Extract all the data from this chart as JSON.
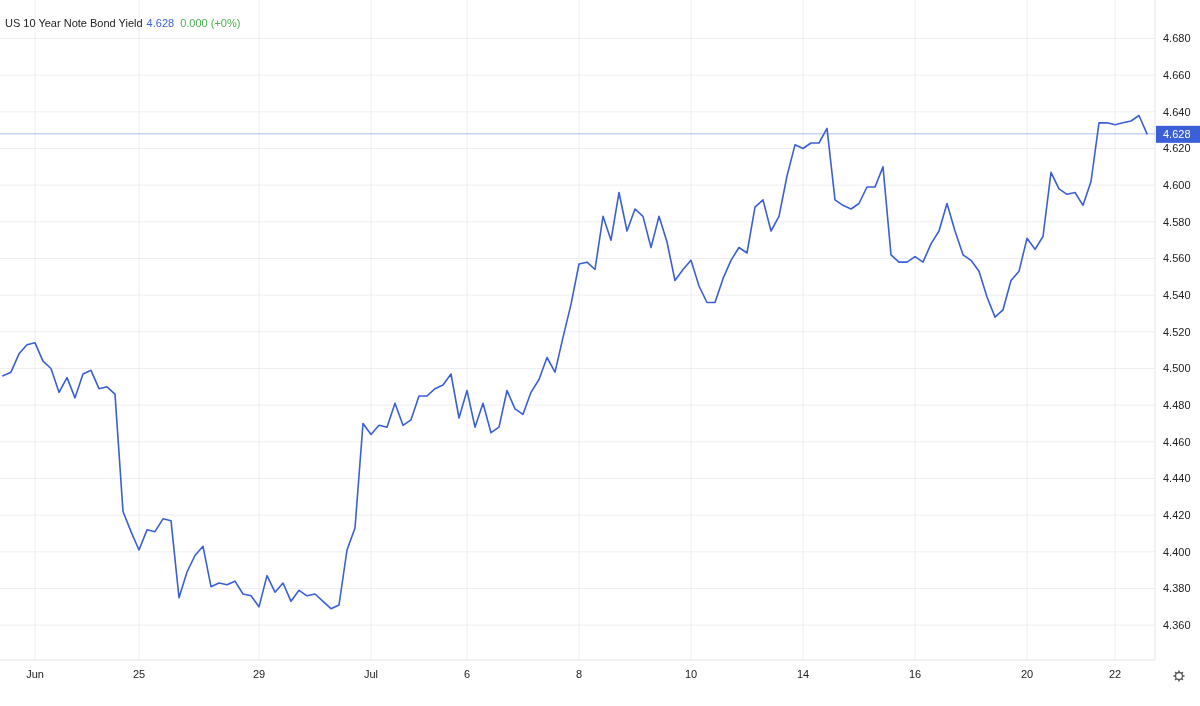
{
  "chart_data": {
    "type": "line",
    "title": "US 10 Year Note Bond Yield",
    "annotations": [
      "4.628",
      "0.000 (+0%)"
    ],
    "categories": [
      null,
      null,
      null,
      null,
      "Jun",
      null,
      null,
      null,
      null,
      null,
      null,
      null,
      null,
      null,
      null,
      null,
      null,
      "25",
      null,
      null,
      null,
      null,
      null,
      null,
      null,
      null,
      null,
      null,
      null,
      null,
      null,
      null,
      "29",
      null,
      null,
      null,
      null,
      null,
      null,
      null,
      null,
      null,
      null,
      null,
      null,
      null,
      "Jul",
      null,
      null,
      null,
      null,
      null,
      null,
      null,
      null,
      null,
      null,
      null,
      "6",
      null,
      null,
      null,
      null,
      null,
      null,
      null,
      null,
      null,
      null,
      null,
      null,
      null,
      "8",
      null,
      null,
      null,
      null,
      null,
      null,
      null,
      null,
      null,
      null,
      null,
      null,
      null,
      "10",
      null,
      null,
      null,
      null,
      null,
      null,
      null,
      null,
      null,
      null,
      null,
      null,
      null,
      "14",
      null,
      null,
      null,
      null,
      null,
      null,
      null,
      null,
      null,
      null,
      null,
      null,
      null,
      "16",
      null,
      null,
      null,
      null,
      null,
      null,
      null,
      null,
      null,
      null,
      null,
      null,
      null,
      "20",
      null,
      null,
      null,
      null,
      null,
      null,
      null,
      null,
      null,
      null,
      "22",
      null,
      null,
      null,
      null
    ],
    "series": [
      {
        "color": "#3a5fd6",
        "values": [
          4.496,
          4.498,
          4.508,
          4.513,
          4.514,
          4.504,
          4.5,
          4.487,
          4.495,
          4.484,
          4.497,
          4.499,
          4.489,
          4.49,
          4.486,
          4.422,
          4.411,
          4.401,
          4.412,
          4.411,
          4.418,
          4.417,
          4.375,
          4.389,
          4.398,
          4.403,
          4.381,
          4.383,
          4.382,
          4.384,
          4.377,
          4.376,
          4.37,
          4.387,
          4.378,
          4.383,
          4.373,
          4.379,
          4.376,
          4.377,
          4.373,
          4.369,
          4.371,
          4.401,
          4.413,
          4.47,
          4.464,
          4.469,
          4.468,
          4.481,
          4.469,
          4.472,
          4.485,
          4.485,
          4.489,
          4.491,
          4.497,
          4.473,
          4.488,
          4.468,
          4.481,
          4.465,
          4.468,
          4.488,
          4.478,
          4.475,
          4.487,
          4.494,
          4.506,
          4.498,
          4.517,
          4.535,
          4.557,
          4.558,
          4.554,
          4.583,
          4.57,
          4.596,
          4.575,
          4.587,
          4.583,
          4.566,
          4.583,
          4.569,
          4.548,
          4.554,
          4.559,
          4.545,
          4.536,
          4.536,
          4.549,
          4.559,
          4.566,
          4.563,
          4.588,
          4.592,
          4.575,
          4.583,
          4.605,
          4.622,
          4.62,
          4.623,
          4.623,
          4.631,
          4.592,
          4.589,
          4.587,
          4.59,
          4.599,
          4.599,
          4.61,
          4.562,
          4.558,
          4.558,
          4.561,
          4.558,
          4.568,
          4.575,
          4.59,
          4.575,
          4.562,
          4.559,
          4.553,
          4.539,
          4.528,
          4.532,
          4.548,
          4.553,
          4.571,
          4.565,
          4.572,
          4.607,
          4.598,
          4.595,
          4.596,
          4.589,
          4.602,
          4.634,
          4.634,
          4.633,
          4.634,
          4.635,
          4.638,
          4.628
        ]
      }
    ],
    "ylim": [
      4.341,
      4.701
    ],
    "yticks": [
      {
        "value": 4.36,
        "label": "4.360"
      },
      {
        "value": 4.38,
        "label": "4.380"
      },
      {
        "value": 4.4,
        "label": "4.400"
      },
      {
        "value": 4.42,
        "label": "4.420"
      },
      {
        "value": 4.44,
        "label": "4.440"
      },
      {
        "value": 4.46,
        "label": "4.460"
      },
      {
        "value": 4.48,
        "label": "4.480"
      },
      {
        "value": 4.5,
        "label": "4.500"
      },
      {
        "value": 4.52,
        "label": "4.520"
      },
      {
        "value": 4.54,
        "label": "4.540"
      },
      {
        "value": 4.56,
        "label": "4.560"
      },
      {
        "value": 4.58,
        "label": "4.580"
      },
      {
        "value": 4.6,
        "label": "4.600"
      },
      {
        "value": 4.62,
        "label": "4.620"
      },
      {
        "value": 4.64,
        "label": "4.640"
      },
      {
        "value": 4.66,
        "label": "4.660"
      },
      {
        "value": 4.68,
        "label": "4.680"
      }
    ],
    "ref_lines": [
      {
        "axis": "y",
        "value": 4.628,
        "label": "4.628",
        "color": "#3a5fd6"
      }
    ],
    "grid": true,
    "marker": "none",
    "line_style": "solid"
  }
}
